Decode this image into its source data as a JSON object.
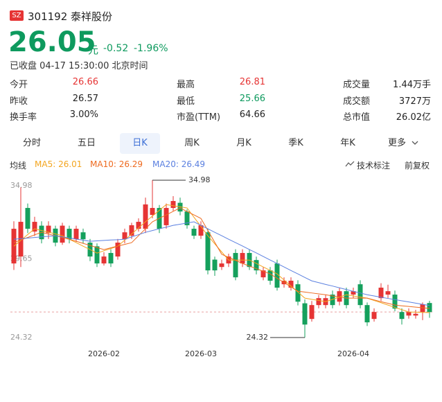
{
  "header": {
    "exchange": "SZ",
    "code": "301192",
    "name": "泰祥股份",
    "price": "26.05",
    "unit": "元",
    "change": "-0.52",
    "change_pct": "-1.96%",
    "status": "已收盘 04-17 15:30:00 北京时间"
  },
  "stats": [
    [
      {
        "label": "今开",
        "value": "26.66"
      },
      {
        "label": "最高",
        "value": "26.81"
      },
      {
        "label": "成交量",
        "value": "1.44万手"
      }
    ],
    [
      {
        "label": "昨收",
        "value": "26.57"
      },
      {
        "label": "最低",
        "value": "25.66"
      },
      {
        "label": "成交额",
        "value": "3727万"
      }
    ],
    [
      {
        "label": "换手率",
        "value": "3.00%"
      },
      {
        "label": "市盈(TTM)",
        "value": "64.66"
      },
      {
        "label": "总市值",
        "value": "26.02亿"
      }
    ]
  ],
  "tabs": [
    "分时",
    "五日",
    "日K",
    "周K",
    "月K",
    "季K",
    "年K",
    "更多"
  ],
  "indicator_bar": {
    "label": "均线",
    "tools": [
      "技术标注",
      "前复权"
    ]
  },
  "chart_data": {
    "type": "candlestick",
    "up_color": "#e63434",
    "down_color": "#15a05c",
    "categories": [
      null,
      null,
      null,
      null,
      null,
      null,
      null,
      null,
      null,
      null,
      null,
      null,
      null,
      "2026-02",
      null,
      null,
      null,
      null,
      null,
      null,
      null,
      null,
      null,
      null,
      null,
      null,
      null,
      "2026-03",
      null,
      null,
      null,
      null,
      null,
      null,
      null,
      null,
      null,
      null,
      null,
      null,
      null,
      null,
      null,
      null,
      null,
      null,
      null,
      null,
      null,
      "2026-04",
      null,
      null,
      null,
      null,
      null,
      null,
      null,
      null,
      null,
      null,
      null
    ],
    "open": [
      29.34,
      29.81,
      33.1,
      31.5,
      31.9,
      31.4,
      31.7,
      30.75,
      31.69,
      30.98,
      31.45,
      30.75,
      30.5,
      29.34,
      30.05,
      29.81,
      30.98,
      31.22,
      31.69,
      31.69,
      32.63,
      33.1,
      31.93,
      33.1,
      33.45,
      32.86,
      31.69,
      31.22,
      31.45,
      29.6,
      29.1,
      29.34,
      30.05,
      29.34,
      30.05,
      29.57,
      28.4,
      28.87,
      29.34,
      27.93,
      27.7,
      27.93,
      26.64,
      25.58,
      26.52,
      26.52,
      27.23,
      26.75,
      27.46,
      27.23,
      27.93,
      26.52,
      25.58,
      26.99,
      27.23,
      27.23,
      26.05,
      25.81,
      25.81,
      26.05,
      26.66
    ],
    "high": [
      32.2,
      34.5,
      33.4,
      32.5,
      32.2,
      32.2,
      31.9,
      32.1,
      31.9,
      31.9,
      31.7,
      31.0,
      30.7,
      30.1,
      30.3,
      31.0,
      31.7,
      32.1,
      32.4,
      33.8,
      34.98,
      33.3,
      33.4,
      33.9,
      33.8,
      33.0,
      31.9,
      32.2,
      31.7,
      29.8,
      29.6,
      30.0,
      30.3,
      30.3,
      30.3,
      29.8,
      29.1,
      29.1,
      29.6,
      28.4,
      28.4,
      28.2,
      26.9,
      26.8,
      27.2,
      27.2,
      27.5,
      27.7,
      27.7,
      27.7,
      28.2,
      26.7,
      26.3,
      28.0,
      27.9,
      27.5,
      26.3,
      26.3,
      26.2,
      26.7,
      26.81
    ],
    "low": [
      28.9,
      29.1,
      31.4,
      31.2,
      30.7,
      31.0,
      30.5,
      30.6,
      30.7,
      30.8,
      30.7,
      29.5,
      29.1,
      29.2,
      29.1,
      29.6,
      30.7,
      31.0,
      31.5,
      31.4,
      32.4,
      31.4,
      31.7,
      32.9,
      32.6,
      31.7,
      31.0,
      31.0,
      28.6,
      28.5,
      28.9,
      29.1,
      28.2,
      29.1,
      28.9,
      28.6,
      28.2,
      27.9,
      27.5,
      27.7,
      27.5,
      26.5,
      24.32,
      25.4,
      26.3,
      26.3,
      26.3,
      26.5,
      26.3,
      27.0,
      26.3,
      25.1,
      25.4,
      26.8,
      27.0,
      26.1,
      25.2,
      25.6,
      25.6,
      25.5,
      25.66
    ],
    "close": [
      31.69,
      32.16,
      31.69,
      32.16,
      30.98,
      31.9,
      30.75,
      31.9,
      30.98,
      31.69,
      30.98,
      29.81,
      29.34,
      29.81,
      29.34,
      30.75,
      31.45,
      31.93,
      32.16,
      33.34,
      33.1,
      31.69,
      33.1,
      33.57,
      32.86,
      31.93,
      31.22,
      31.93,
      28.87,
      28.87,
      29.34,
      29.81,
      28.4,
      30.05,
      29.1,
      28.87,
      28.87,
      28.17,
      27.7,
      28.17,
      28.17,
      26.75,
      25.2,
      26.52,
      26.99,
      26.99,
      26.52,
      27.46,
      26.52,
      27.46,
      26.52,
      25.35,
      26.05,
      27.7,
      27.46,
      26.28,
      25.58,
      26.05,
      25.93,
      26.57,
      26.05
    ],
    "series": [
      {
        "name": "MA5",
        "color": "#f3a51f",
        "values": [
          30.51,
          30.9,
          31.3,
          31.69,
          31.57,
          31.46,
          31.34,
          31.22,
          30.98,
          30.75,
          30.51,
          30.28,
          30.04,
          30.2,
          30.35,
          30.51,
          30.92,
          31.34,
          31.75,
          32.16,
          32.55,
          32.94,
          33.33,
          33.25,
          33.18,
          33.1,
          32.47,
          31.85,
          31.22,
          30.67,
          30.12,
          29.57,
          29.57,
          29.57,
          29.57,
          29.34,
          29.1,
          28.87,
          28.63,
          28.22,
          27.81,
          27.4,
          26.99,
          26.91,
          26.83,
          26.75,
          26.91,
          27.06,
          27.22,
          27.14,
          27.07,
          26.99,
          26.83,
          26.68,
          26.52,
          26.36,
          26.21,
          26.05,
          26.04,
          26.02,
          26.01
        ]
      },
      {
        "name": "MA10",
        "color": "#ee6a1f",
        "values": [
          30.75,
          30.93,
          31.1,
          31.28,
          31.45,
          31.33,
          31.22,
          31.1,
          30.98,
          30.84,
          30.7,
          30.56,
          30.42,
          30.28,
          30.4,
          30.52,
          30.63,
          30.75,
          31.22,
          31.69,
          32.16,
          32.4,
          32.63,
          32.87,
          33.1,
          32.86,
          32.63,
          32.39,
          31.58,
          30.77,
          29.96,
          29.75,
          29.55,
          29.34,
          29.16,
          28.99,
          28.81,
          28.63,
          28.34,
          28.05,
          27.75,
          27.46,
          27.4,
          27.34,
          27.28,
          27.22,
          27.14,
          27.07,
          26.99,
          26.99,
          26.99,
          26.99,
          26.87,
          26.75,
          26.64,
          26.52,
          26.47,
          26.43,
          26.38,
          26.34,
          26.29
        ]
      },
      {
        "name": "MA20",
        "color": "#5b80e0",
        "values": [
          30.98,
          31.02,
          31.06,
          31.1,
          31.14,
          31.18,
          31.22,
          31.14,
          31.07,
          30.99,
          30.92,
          30.84,
          30.87,
          30.9,
          30.93,
          30.95,
          30.98,
          31.14,
          31.29,
          31.45,
          31.57,
          31.69,
          31.8,
          31.92,
          32.0,
          32.08,
          32.16,
          31.92,
          31.69,
          31.45,
          31.22,
          30.98,
          30.75,
          30.52,
          30.28,
          30.05,
          29.81,
          29.57,
          29.34,
          29.1,
          28.86,
          28.63,
          28.39,
          28.16,
          28.04,
          27.92,
          27.81,
          27.69,
          27.57,
          27.45,
          27.34,
          27.22,
          27.14,
          27.05,
          26.97,
          26.89,
          26.81,
          26.73,
          26.65,
          26.57,
          26.49
        ]
      }
    ],
    "ylim": [
      24.32,
      34.98
    ],
    "yticks": [
      24.32,
      29.65,
      34.98
    ]
  }
}
